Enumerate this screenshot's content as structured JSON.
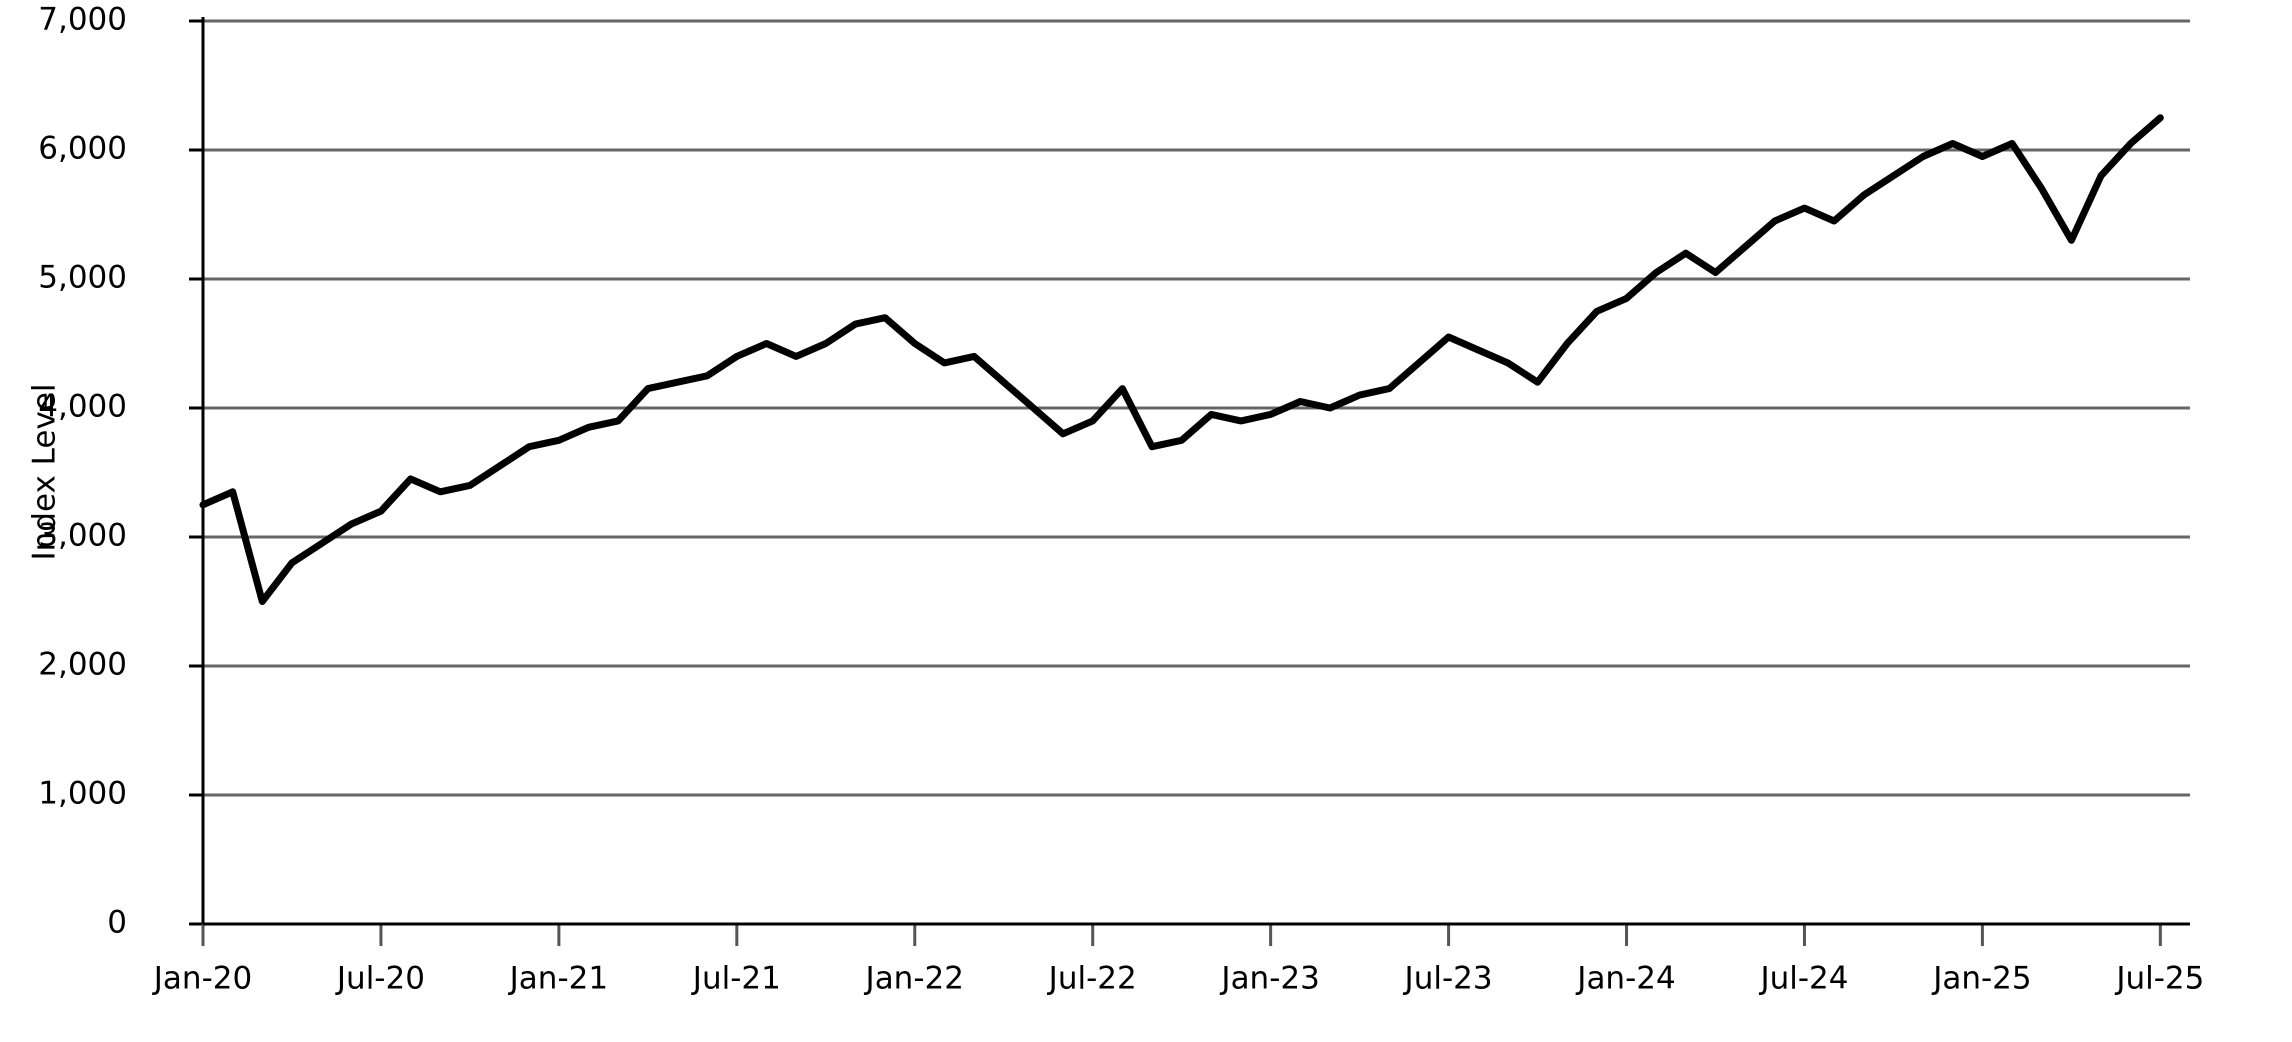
{
  "chart_data": {
    "type": "line",
    "y_label": "Index Level",
    "color": "#000000",
    "grid": true,
    "x": [
      "2020-01",
      "2020-02",
      "2020-03",
      "2020-04",
      "2020-05",
      "2020-06",
      "2020-07",
      "2020-08",
      "2020-09",
      "2020-10",
      "2020-11",
      "2020-12",
      "2021-01",
      "2021-02",
      "2021-03",
      "2021-04",
      "2021-05",
      "2021-06",
      "2021-07",
      "2021-08",
      "2021-09",
      "2021-10",
      "2021-11",
      "2021-12",
      "2022-01",
      "2022-02",
      "2022-03",
      "2022-04",
      "2022-05",
      "2022-06",
      "2022-07",
      "2022-08",
      "2022-09",
      "2022-10",
      "2022-11",
      "2022-12",
      "2023-01",
      "2023-02",
      "2023-03",
      "2023-04",
      "2023-05",
      "2023-06",
      "2023-07",
      "2023-08",
      "2023-09",
      "2023-10",
      "2023-11",
      "2023-12",
      "2024-01",
      "2024-02",
      "2024-03",
      "2024-04",
      "2024-05",
      "2024-06",
      "2024-07",
      "2024-08",
      "2024-09",
      "2024-10",
      "2024-11",
      "2024-12",
      "2025-01",
      "2025-02",
      "2025-03",
      "2025-04",
      "2025-05",
      "2025-06",
      "2025-07"
    ],
    "values": [
      3250,
      3350,
      2500,
      2800,
      2950,
      3100,
      3200,
      3450,
      3350,
      3400,
      3550,
      3700,
      3750,
      3850,
      3900,
      4150,
      4200,
      4250,
      4400,
      4500,
      4400,
      4500,
      4650,
      4700,
      4500,
      4350,
      4400,
      4200,
      4000,
      3800,
      3900,
      4150,
      3700,
      3750,
      3950,
      3900,
      3950,
      4050,
      4000,
      4100,
      4150,
      4350,
      4550,
      4450,
      4350,
      4200,
      4500,
      4750,
      4850,
      5050,
      5200,
      5050,
      5250,
      5450,
      5550,
      5450,
      5650,
      5800,
      5950,
      6050,
      5950,
      6050,
      5700,
      5300,
      5800,
      6050,
      6250
    ],
    "xlim": [
      "2020-01",
      "2025-08"
    ],
    "xticks": [
      {
        "value": "2020-01",
        "label": "Jan-20"
      },
      {
        "value": "2020-07",
        "label": "Jul-20"
      },
      {
        "value": "2021-01",
        "label": "Jan-21"
      },
      {
        "value": "2021-07",
        "label": "Jul-21"
      },
      {
        "value": "2022-01",
        "label": "Jan-22"
      },
      {
        "value": "2022-07",
        "label": "Jul-22"
      },
      {
        "value": "2023-01",
        "label": "Jan-23"
      },
      {
        "value": "2023-07",
        "label": "Jul-23"
      },
      {
        "value": "2024-01",
        "label": "Jan-24"
      },
      {
        "value": "2024-07",
        "label": "Jul-24"
      },
      {
        "value": "2025-01",
        "label": "Jan-25"
      },
      {
        "value": "2025-07",
        "label": "Jul-25"
      }
    ],
    "ylim": [
      0,
      7000
    ],
    "yticks": [
      0,
      {
        "value": 1000,
        "label": "1,000"
      },
      {
        "value": 2000,
        "label": "2,000"
      },
      {
        "value": 3000,
        "label": "3,000"
      },
      {
        "value": 4000,
        "label": "4,000"
      },
      {
        "value": 5000,
        "label": "5,000"
      },
      {
        "value": 6000,
        "label": "6,000"
      },
      {
        "value": 7000,
        "label": "7,000"
      }
    ]
  }
}
